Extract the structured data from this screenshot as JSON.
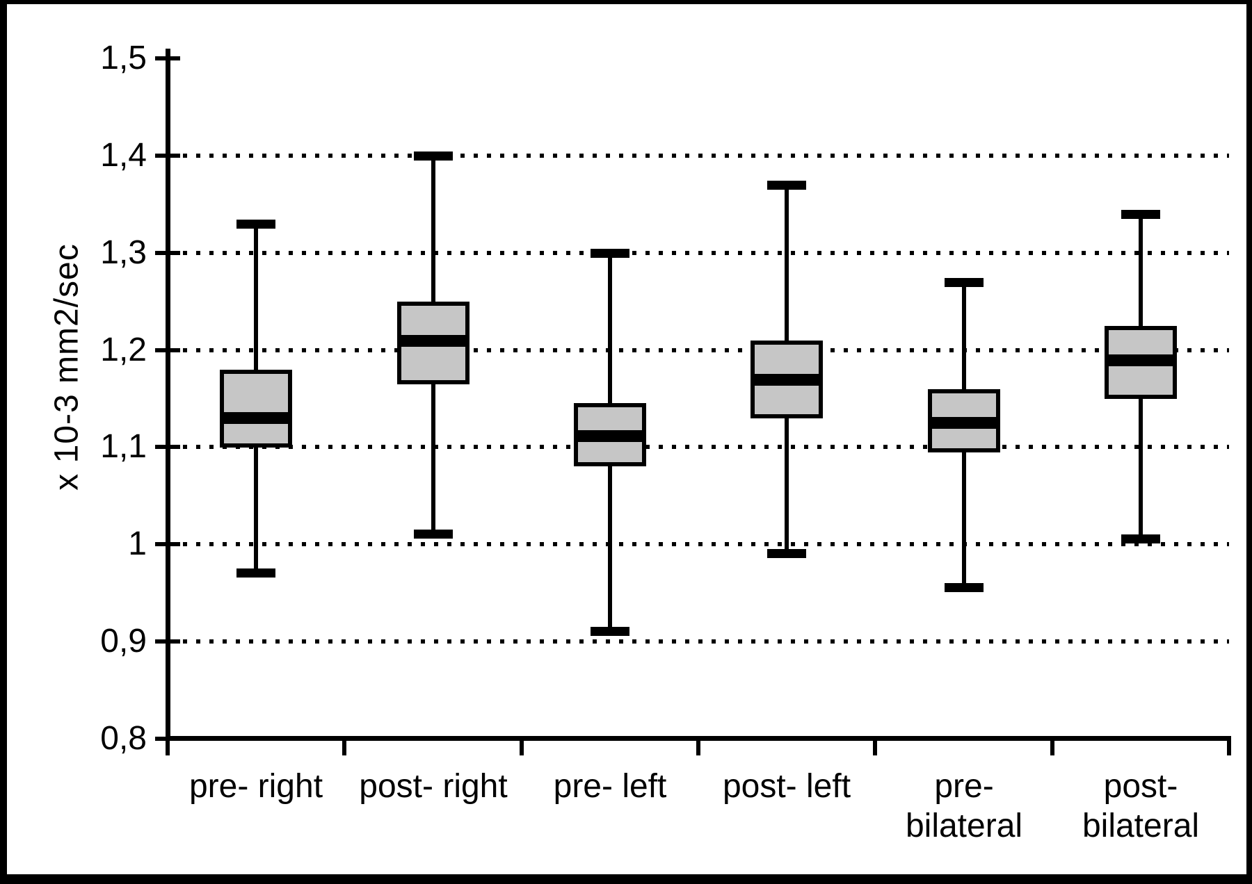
{
  "chart_data": {
    "type": "box",
    "title": "",
    "ylabel": "x 10-3 mm2/sec",
    "xlabel": "",
    "ylim": [
      0.8,
      1.5
    ],
    "decimal_separator": ",",
    "grid": "dotted-horizontal",
    "legend": "none",
    "y_ticks": [
      {
        "label": "1,5",
        "value": 1.5
      },
      {
        "label": "1,4",
        "value": 1.4
      },
      {
        "label": "1,3",
        "value": 1.3
      },
      {
        "label": "1,2",
        "value": 1.2
      },
      {
        "label": "1,1",
        "value": 1.1
      },
      {
        "label": "1",
        "value": 1.0
      },
      {
        "label": "0,9",
        "value": 0.9
      },
      {
        "label": "0,8",
        "value": 0.8
      }
    ],
    "gridline_values": [
      1.4,
      1.3,
      1.2,
      1.1,
      1.0,
      0.9
    ],
    "categories": [
      {
        "label": "pre- right",
        "lines": [
          "pre- right"
        ]
      },
      {
        "label": "post- right",
        "lines": [
          "post- right"
        ]
      },
      {
        "label": "pre- left",
        "lines": [
          "pre- left"
        ]
      },
      {
        "label": "post- left",
        "lines": [
          "post- left"
        ]
      },
      {
        "label": "pre-bilateral",
        "lines": [
          "pre-",
          "bilateral"
        ]
      },
      {
        "label": "post-bilateral",
        "lines": [
          "post-",
          "bilateral"
        ]
      }
    ],
    "series": [
      {
        "name": "pre- right",
        "whisker_low": 0.97,
        "q1": 1.1,
        "median": 1.13,
        "q3": 1.18,
        "whisker_high": 1.33
      },
      {
        "name": "post- right",
        "whisker_low": 1.01,
        "q1": 1.165,
        "median": 1.21,
        "q3": 1.25,
        "whisker_high": 1.4
      },
      {
        "name": "pre- left",
        "whisker_low": 0.91,
        "q1": 1.08,
        "median": 1.112,
        "q3": 1.145,
        "whisker_high": 1.3
      },
      {
        "name": "post- left",
        "whisker_low": 0.99,
        "q1": 1.13,
        "median": 1.17,
        "q3": 1.21,
        "whisker_high": 1.37
      },
      {
        "name": "pre-bilateral",
        "whisker_low": 0.955,
        "q1": 1.095,
        "median": 1.125,
        "q3": 1.16,
        "whisker_high": 1.27
      },
      {
        "name": "post-bilateral",
        "whisker_low": 1.005,
        "q1": 1.15,
        "median": 1.19,
        "q3": 1.225,
        "whisker_high": 1.34
      }
    ],
    "colors": {
      "box_fill": "#c6c6c6",
      "line": "#000000",
      "background": "#ffffff"
    }
  }
}
